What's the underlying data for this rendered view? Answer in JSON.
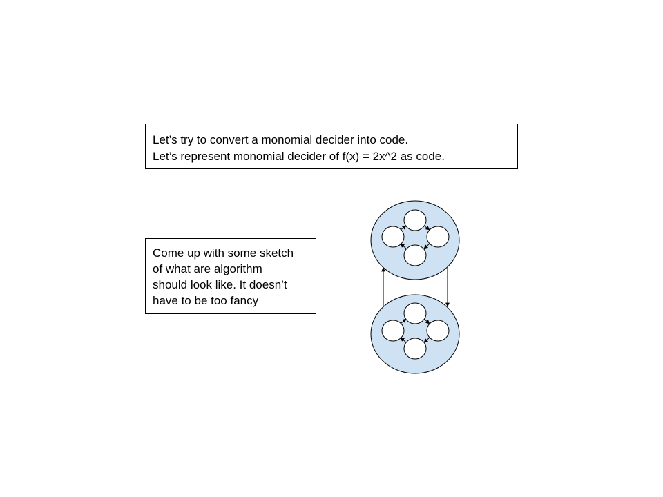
{
  "intro": {
    "lines": [
      "Let’s try to convert a monomial decider into code.",
      "Let’s represent monomial decider of f(x) = 2x^2 as code."
    ]
  },
  "sketch_note": {
    "lines": [
      "Come up with some sketch",
      "of what are algorithm",
      "should look like. It doesn’t",
      "have to be too fancy"
    ]
  },
  "diagram": {
    "outer_fill": "#cfe2f3",
    "inner_fill": "#ffffff",
    "stroke": "#000000",
    "groups": [
      "top",
      "bottom"
    ],
    "inner_nodes_per_group": 4,
    "cycle_direction": "clockwise",
    "link_top_to_bottom": "right-side arrow pointing down",
    "link_bottom_to_top": "left-side arrow pointing up"
  }
}
